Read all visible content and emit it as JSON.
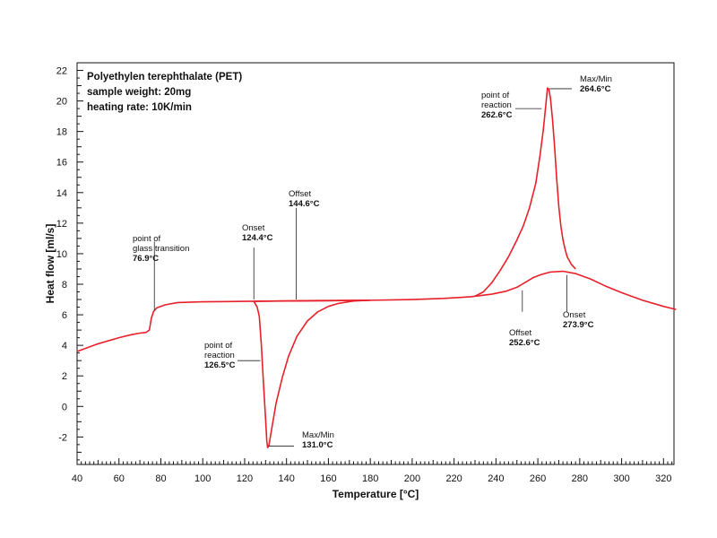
{
  "chart_data": {
    "type": "line",
    "info_lines": [
      "Polyethylen terephthalate (PET)",
      "sample weight: 20mg",
      "heating rate: 10K/min"
    ],
    "xlabel": "Temperature [°C]",
    "ylabel": "Heat flow [ml/s]",
    "xlim": [
      40,
      325
    ],
    "ylim": [
      -3.8,
      22.5
    ],
    "x_ticks": [
      40,
      60,
      80,
      100,
      120,
      140,
      160,
      180,
      200,
      220,
      240,
      260,
      280,
      300,
      320
    ],
    "y_ticks": [
      -2,
      0,
      2,
      4,
      6,
      8,
      10,
      12,
      14,
      16,
      18,
      20,
      22
    ],
    "grid": false,
    "line_color": "#e8202a",
    "series": [
      {
        "points": [
          [
            40,
            3.6
          ],
          [
            50,
            4.1
          ],
          [
            60,
            4.5
          ],
          [
            66,
            4.7
          ],
          [
            70,
            4.8
          ],
          [
            73,
            4.85
          ],
          [
            74.5,
            5.0
          ],
          [
            75.5,
            5.8
          ],
          [
            76.5,
            6.2
          ],
          [
            78,
            6.45
          ],
          [
            82,
            6.65
          ],
          [
            88,
            6.8
          ],
          [
            100,
            6.85
          ],
          [
            120,
            6.88
          ],
          [
            140,
            6.9
          ],
          [
            160,
            6.92
          ],
          [
            180,
            6.95
          ],
          [
            200,
            7.0
          ],
          [
            215,
            7.07
          ],
          [
            228,
            7.18
          ],
          [
            238,
            7.35
          ],
          [
            245,
            7.55
          ],
          [
            250,
            7.8
          ],
          [
            255,
            8.2
          ],
          [
            258,
            8.45
          ],
          [
            262,
            8.65
          ],
          [
            266,
            8.8
          ],
          [
            272,
            8.85
          ],
          [
            278,
            8.7
          ],
          [
            285,
            8.35
          ],
          [
            292,
            7.9
          ],
          [
            300,
            7.45
          ],
          [
            310,
            6.95
          ],
          [
            320,
            6.55
          ],
          [
            326,
            6.35
          ]
        ]
      },
      {
        "points": [
          [
            124.4,
            6.88
          ],
          [
            126,
            6.5
          ],
          [
            127,
            5.9
          ],
          [
            128,
            4.0
          ],
          [
            129,
            1.5
          ],
          [
            130,
            -0.8
          ],
          [
            130.6,
            -2.3
          ],
          [
            131,
            -2.7
          ],
          [
            131.6,
            -2.55
          ],
          [
            133,
            -1.4
          ],
          [
            135,
            0.2
          ],
          [
            138,
            1.9
          ],
          [
            141,
            3.3
          ],
          [
            145,
            4.6
          ],
          [
            150,
            5.6
          ],
          [
            155,
            6.2
          ],
          [
            160,
            6.55
          ],
          [
            165,
            6.75
          ],
          [
            172,
            6.9
          ],
          [
            180,
            6.95
          ]
        ]
      },
      {
        "points": [
          [
            230,
            7.22
          ],
          [
            234,
            7.5
          ],
          [
            238,
            8.1
          ],
          [
            242,
            8.9
          ],
          [
            246,
            9.8
          ],
          [
            250,
            10.9
          ],
          [
            253,
            11.8
          ],
          [
            256,
            13.0
          ],
          [
            259,
            14.6
          ],
          [
            261,
            16.4
          ],
          [
            262.6,
            18.1
          ],
          [
            264,
            20.0
          ],
          [
            264.6,
            20.85
          ],
          [
            265.3,
            20.75
          ],
          [
            266,
            20.2
          ],
          [
            267,
            18.8
          ],
          [
            268,
            17.0
          ],
          [
            269,
            14.9
          ],
          [
            270,
            13.1
          ],
          [
            271,
            11.8
          ],
          [
            272,
            10.9
          ],
          [
            273,
            10.3
          ],
          [
            274,
            9.8
          ],
          [
            276,
            9.3
          ],
          [
            278,
            9.0
          ]
        ]
      },
      {
        "points": [
          [
            124.4,
            6.88
          ],
          [
            135,
            6.9
          ],
          [
            145,
            6.92
          ],
          [
            155,
            6.93
          ],
          [
            165,
            6.94
          ],
          [
            175,
            6.95
          ],
          [
            180,
            6.95
          ]
        ]
      }
    ],
    "annotations": [
      {
        "label_lines": [
          "point of",
          "glass transition"
        ],
        "value": "76.9°C",
        "x": 76.9,
        "y": 6.3,
        "anchor_y": 10.8
      },
      {
        "label_lines": [
          "Onset"
        ],
        "value": "124.4°C",
        "x": 124.4,
        "y": 7.0,
        "anchor_y": 10.4
      },
      {
        "label_lines": [
          "Offset"
        ],
        "value": "144.6°C",
        "x": 144.6,
        "y": 7.0,
        "anchor_y": 13.0
      },
      {
        "label_lines": [
          "point of",
          "reaction"
        ],
        "value": "126.5°C",
        "x": 127.5,
        "y": 3.0,
        "anchor_y": 3.0
      },
      {
        "label_lines": [
          "Max/Min"
        ],
        "value": "131.0°C",
        "x": 131.5,
        "y": -2.6,
        "anchor_y": -2.6
      },
      {
        "label_lines": [
          "point of",
          "reaction"
        ],
        "value": "262.6°C",
        "x": 261.8,
        "y": 19.5,
        "anchor_y": 19.5
      },
      {
        "label_lines": [
          "Max/Min"
        ],
        "value": "264.6°C",
        "x": 265.5,
        "y": 20.8,
        "anchor_y": 20.8
      },
      {
        "label_lines": [
          "Offset"
        ],
        "value": "252.6°C",
        "x": 252.6,
        "y": 7.6,
        "anchor_y": 6.2
      },
      {
        "label_lines": [
          "Onset"
        ],
        "value": "273.9°C",
        "x": 273.9,
        "y": 8.6,
        "anchor_y": 6.2
      }
    ]
  }
}
